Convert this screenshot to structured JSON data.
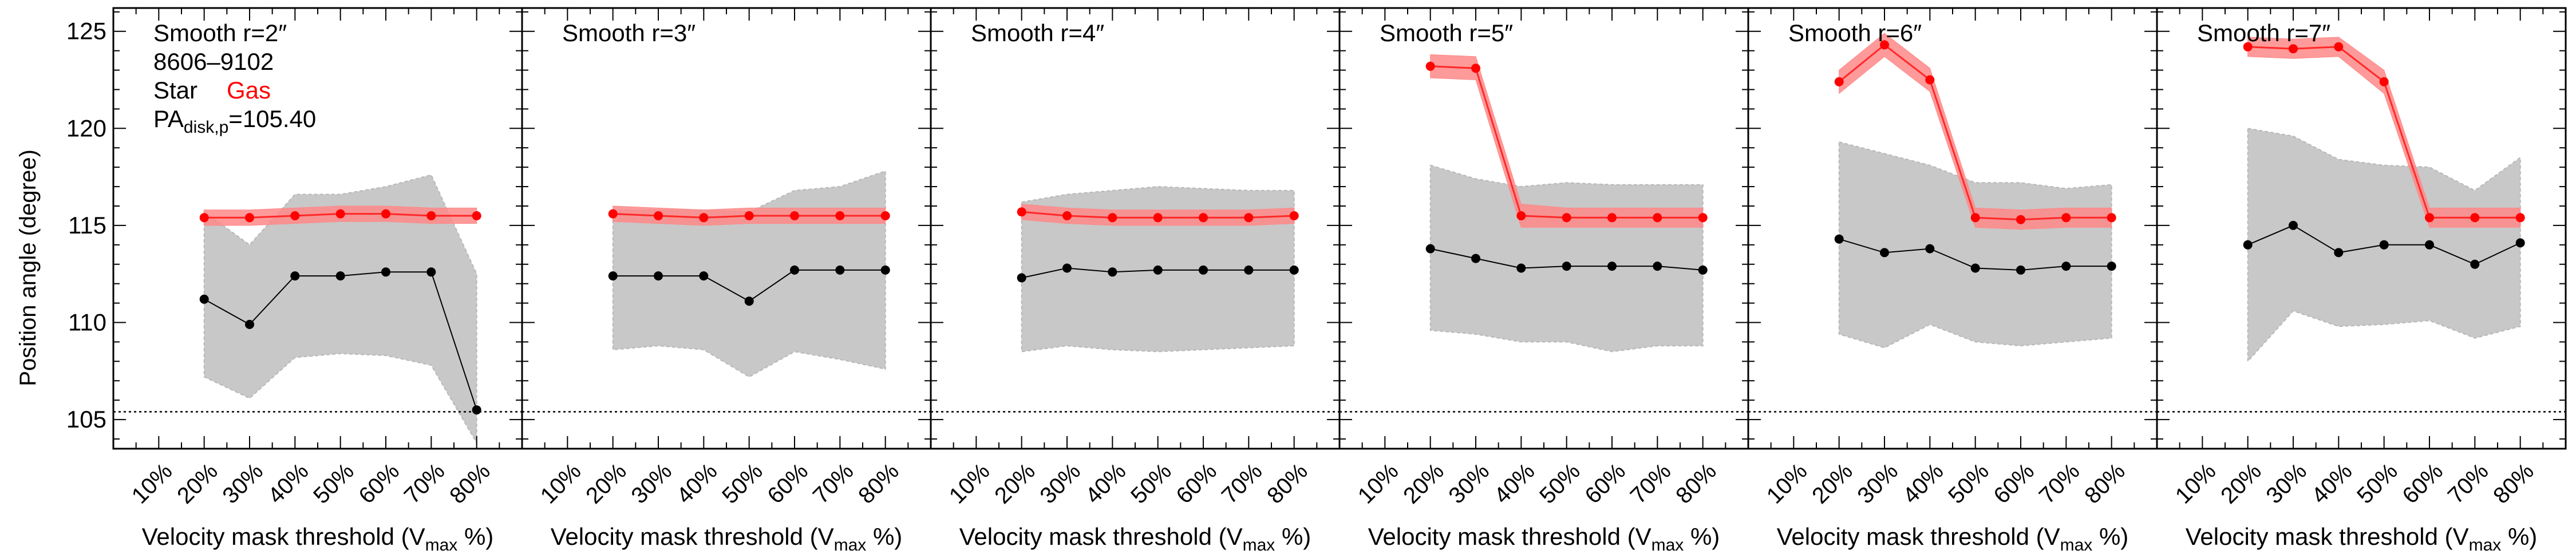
{
  "figure": {
    "ylabel": "Position angle (degree)",
    "legend": {
      "star_label": "Star",
      "gas_label": "Gas",
      "star_color": "#000000",
      "gas_color": "#ff0000"
    },
    "info": {
      "galaxy_id": "8606–9102",
      "pa_prefix": "PA",
      "pa_sub": "disk,p",
      "pa_value": "=105.40"
    }
  },
  "colors": {
    "star_band": "#c8c8c8",
    "gas_band": "#ff8888",
    "gas_line": "#ff2828",
    "gas_point": "#ff0000",
    "star_point": "#000000"
  },
  "chart_data": [
    {
      "type": "line",
      "title": "Smooth r=2″",
      "xlabel_main": "Velocity mask threshold (V",
      "xlabel_sub": "max",
      "xlabel_tail": " %)",
      "xticks": [
        "10%",
        "20%",
        "30%",
        "40%",
        "50%",
        "60%",
        "70%",
        "80%"
      ],
      "x": [
        20,
        30,
        40,
        50,
        60,
        70,
        80
      ],
      "ylim": [
        103.5,
        126.2
      ],
      "yticks": [
        105,
        110,
        115,
        120,
        125
      ],
      "reference_line": 105.4,
      "series": [
        {
          "name": "Star",
          "values": [
            111.2,
            109.9,
            112.4,
            112.4,
            112.6,
            112.6,
            105.5
          ],
          "lower": [
            107.2,
            106.1,
            108.2,
            108.4,
            108.3,
            107.8,
            103.8
          ],
          "upper": [
            115.7,
            114.0,
            116.6,
            116.6,
            117.0,
            117.6,
            112.5
          ]
        },
        {
          "name": "Gas",
          "values": [
            115.4,
            115.4,
            115.5,
            115.6,
            115.6,
            115.5,
            115.5
          ],
          "lower": [
            115.0,
            115.0,
            115.1,
            115.2,
            115.2,
            115.1,
            115.1
          ],
          "upper": [
            115.8,
            115.8,
            115.9,
            116.0,
            116.0,
            115.9,
            115.9
          ]
        }
      ]
    },
    {
      "type": "line",
      "title": "Smooth r=3″",
      "xlabel_main": "Velocity mask threshold (V",
      "xlabel_sub": "max",
      "xlabel_tail": " %)",
      "xticks": [
        "10%",
        "20%",
        "30%",
        "40%",
        "50%",
        "60%",
        "70%",
        "80%"
      ],
      "x": [
        20,
        30,
        40,
        50,
        60,
        70,
        80
      ],
      "ylim": [
        103.5,
        126.2
      ],
      "reference_line": 105.4,
      "series": [
        {
          "name": "Star",
          "values": [
            112.4,
            112.4,
            112.4,
            111.1,
            112.7,
            112.7,
            112.7
          ],
          "lower": [
            108.6,
            108.8,
            108.6,
            107.2,
            108.5,
            108.1,
            107.6
          ],
          "upper": [
            115.8,
            115.8,
            115.8,
            115.7,
            116.8,
            117.0,
            117.8
          ]
        },
        {
          "name": "Gas",
          "values": [
            115.6,
            115.5,
            115.4,
            115.5,
            115.5,
            115.5,
            115.5
          ],
          "lower": [
            115.2,
            115.1,
            115.0,
            115.1,
            115.1,
            115.1,
            115.1
          ],
          "upper": [
            116.0,
            115.9,
            115.8,
            115.9,
            115.9,
            115.9,
            115.9
          ]
        }
      ]
    },
    {
      "type": "line",
      "title": "Smooth r=4″",
      "xlabel_main": "Velocity mask threshold (V",
      "xlabel_sub": "max",
      "xlabel_tail": " %)",
      "xticks": [
        "10%",
        "20%",
        "30%",
        "40%",
        "50%",
        "60%",
        "70%",
        "80%"
      ],
      "x": [
        20,
        30,
        40,
        50,
        60,
        70,
        80
      ],
      "ylim": [
        103.5,
        126.2
      ],
      "reference_line": 105.4,
      "series": [
        {
          "name": "Star",
          "values": [
            112.3,
            112.8,
            112.6,
            112.7,
            112.7,
            112.7,
            112.7
          ],
          "lower": [
            108.5,
            108.8,
            108.6,
            108.5,
            108.6,
            108.7,
            108.8
          ],
          "upper": [
            116.2,
            116.6,
            116.8,
            117.0,
            116.9,
            116.8,
            116.8
          ]
        },
        {
          "name": "Gas",
          "values": [
            115.7,
            115.5,
            115.4,
            115.4,
            115.4,
            115.4,
            115.5
          ],
          "lower": [
            115.3,
            115.1,
            115.0,
            115.0,
            115.0,
            115.0,
            115.1
          ],
          "upper": [
            116.1,
            115.9,
            115.8,
            115.8,
            115.8,
            115.8,
            115.9
          ]
        }
      ]
    },
    {
      "type": "line",
      "title": "Smooth r=5″",
      "xlabel_main": "Velocity mask threshold (V",
      "xlabel_sub": "max",
      "xlabel_tail": " %)",
      "xticks": [
        "10%",
        "20%",
        "30%",
        "40%",
        "50%",
        "60%",
        "70%",
        "80%"
      ],
      "x": [
        20,
        30,
        40,
        50,
        60,
        70,
        80
      ],
      "ylim": [
        103.5,
        126.2
      ],
      "reference_line": 105.4,
      "series": [
        {
          "name": "Star",
          "values": [
            113.8,
            113.3,
            112.8,
            112.9,
            112.9,
            112.9,
            112.7
          ],
          "lower": [
            109.6,
            109.4,
            109.0,
            109.0,
            108.5,
            108.8,
            108.8
          ],
          "upper": [
            118.1,
            117.4,
            117.0,
            117.2,
            117.1,
            117.1,
            117.1
          ]
        },
        {
          "name": "Gas",
          "values": [
            123.2,
            123.1,
            115.5,
            115.4,
            115.4,
            115.4,
            115.4
          ],
          "lower": [
            122.6,
            122.5,
            114.9,
            114.9,
            114.9,
            114.9,
            114.9
          ],
          "upper": [
            123.8,
            123.7,
            116.1,
            115.9,
            115.9,
            115.9,
            115.9
          ]
        }
      ]
    },
    {
      "type": "line",
      "title": "Smooth r=6″",
      "xlabel_main": "Velocity mask threshold (V",
      "xlabel_sub": "max",
      "xlabel_tail": " %)",
      "xticks": [
        "10%",
        "20%",
        "30%",
        "40%",
        "50%",
        "60%",
        "70%",
        "80%"
      ],
      "x": [
        20,
        30,
        40,
        50,
        60,
        70,
        80
      ],
      "ylim": [
        103.5,
        126.2
      ],
      "reference_line": 105.4,
      "series": [
        {
          "name": "Star",
          "values": [
            114.3,
            113.6,
            113.8,
            112.8,
            112.7,
            112.9,
            112.9
          ],
          "lower": [
            109.4,
            108.7,
            109.9,
            109.0,
            108.8,
            109.0,
            109.2
          ],
          "upper": [
            119.3,
            118.7,
            118.1,
            117.2,
            117.2,
            116.9,
            117.1
          ]
        },
        {
          "name": "Gas",
          "values": [
            122.4,
            124.3,
            122.5,
            115.4,
            115.3,
            115.4,
            115.4
          ],
          "lower": [
            121.8,
            123.7,
            121.9,
            114.9,
            114.8,
            114.9,
            114.9
          ],
          "upper": [
            123.0,
            124.9,
            123.1,
            115.9,
            115.8,
            115.9,
            115.9
          ]
        }
      ]
    },
    {
      "type": "line",
      "title": "Smooth r=7″",
      "xlabel_main": "Velocity mask threshold (V",
      "xlabel_sub": "max",
      "xlabel_tail": " %)",
      "xticks": [
        "10%",
        "20%",
        "30%",
        "40%",
        "50%",
        "60%",
        "70%",
        "80%"
      ],
      "x": [
        20,
        30,
        40,
        50,
        60,
        70,
        80
      ],
      "ylim": [
        103.5,
        126.2
      ],
      "reference_line": 105.4,
      "series": [
        {
          "name": "Star",
          "values": [
            114.0,
            115.0,
            113.6,
            114.0,
            114.0,
            113.0,
            114.1
          ],
          "lower": [
            108.0,
            110.6,
            109.8,
            109.9,
            110.1,
            109.2,
            109.8
          ],
          "upper": [
            120.0,
            119.6,
            118.4,
            118.1,
            118.0,
            116.8,
            118.5
          ]
        },
        {
          "name": "Gas",
          "values": [
            124.2,
            124.1,
            124.2,
            122.4,
            115.4,
            115.4,
            115.4
          ],
          "lower": [
            123.7,
            123.6,
            123.7,
            121.8,
            114.9,
            114.9,
            114.9
          ],
          "upper": [
            124.7,
            124.6,
            124.7,
            123.0,
            115.9,
            115.9,
            115.9
          ]
        }
      ]
    }
  ]
}
